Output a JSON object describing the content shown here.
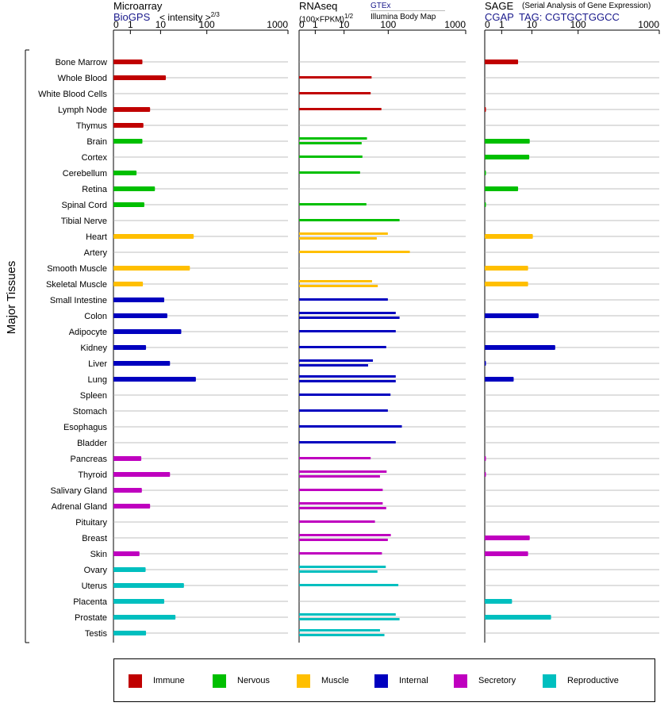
{
  "panels": {
    "microarray": {
      "title": "Microarray",
      "source": "BioGPS",
      "unit_label": "< intensity >",
      "exponent": "2/3",
      "ticks": [
        "0",
        "1",
        "10",
        "100",
        "1000"
      ]
    },
    "rnaseq": {
      "title": "RNAseq",
      "unit_label": "(100×FPKM)",
      "exponent": "1/2",
      "source_gtex": "GTEx",
      "source_ibm": "Illumina Body Map",
      "ticks": [
        "0",
        "1",
        "10",
        "100",
        "1000"
      ]
    },
    "sage": {
      "title": "SAGE",
      "subtitle": "(Serial Analysis of Gene Expression)",
      "source": "CGAP",
      "tag": "TAG: CGTGCTGGCC",
      "ticks": [
        "0",
        "1",
        "10",
        "100",
        "1000"
      ]
    }
  },
  "y_group_label": "Major Tissues",
  "legend": [
    {
      "label": "Immune",
      "color": "#c00000"
    },
    {
      "label": "Nervous",
      "color": "#00bf00"
    },
    {
      "label": "Muscle",
      "color": "#ffbf00"
    },
    {
      "label": "Internal",
      "color": "#0000bf"
    },
    {
      "label": "Secretory",
      "color": "#bf00bf"
    },
    {
      "label": "Reproductive",
      "color": "#00bfbf"
    }
  ],
  "chart_data": {
    "type": "bar",
    "orientation": "horizontal",
    "x_scale": "custom nonlinear (0, 1, 10, 100, 1000)",
    "xlim": [
      0,
      1000
    ],
    "categories": [
      "Bone Marrow",
      "Whole Blood",
      "White Blood Cells",
      "Lymph Node",
      "Thymus",
      "Brain",
      "Cortex",
      "Cerebellum",
      "Retina",
      "Spinal Cord",
      "Tibial Nerve",
      "Heart",
      "Artery",
      "Smooth Muscle",
      "Skeletal Muscle",
      "Small Intestine",
      "Colon",
      "Adipocyte",
      "Kidney",
      "Liver",
      "Lung",
      "Spleen",
      "Stomach",
      "Esophagus",
      "Bladder",
      "Pancreas",
      "Thyroid",
      "Salivary Gland",
      "Adrenal Gland",
      "Pituitary",
      "Breast",
      "Skin",
      "Ovary",
      "Uterus",
      "Placenta",
      "Prostate",
      "Testis"
    ],
    "groups": [
      "Immune",
      "Immune",
      "Immune",
      "Immune",
      "Immune",
      "Nervous",
      "Nervous",
      "Nervous",
      "Nervous",
      "Nervous",
      "Nervous",
      "Muscle",
      "Muscle",
      "Muscle",
      "Muscle",
      "Internal",
      "Internal",
      "Internal",
      "Internal",
      "Internal",
      "Internal",
      "Internal",
      "Internal",
      "Internal",
      "Internal",
      "Secretory",
      "Secretory",
      "Secretory",
      "Secretory",
      "Secretory",
      "Secretory",
      "Secretory",
      "Reproductive",
      "Reproductive",
      "Reproductive",
      "Reproductive",
      "Reproductive"
    ],
    "series": [
      {
        "name": "Microarray",
        "values": [
          2.5,
          13,
          null,
          4.5,
          2.7,
          2.5,
          null,
          1.6,
          6.5,
          2.9,
          null,
          52,
          null,
          43,
          2.6,
          12,
          14,
          28,
          3.3,
          16,
          58,
          null,
          null,
          null,
          null,
          2.3,
          16,
          2.4,
          4.5,
          null,
          null,
          2.0,
          3.2,
          32,
          12,
          21,
          3.3
        ]
      },
      {
        "name": "RNAseq GTEx",
        "values": [
          null,
          42,
          40,
          70,
          null,
          33,
          26,
          23,
          null,
          32,
          140,
          98,
          190,
          null,
          43,
          98,
          125,
          125,
          90,
          45,
          125,
          107,
          98,
          150,
          125,
          40,
          92,
          75,
          75,
          50,
          108,
          72,
          88,
          135,
          null,
          125,
          65
        ]
      },
      {
        "name": "RNAseq Illumina Body Map",
        "values": [
          null,
          null,
          null,
          null,
          null,
          25,
          null,
          null,
          null,
          null,
          null,
          55,
          null,
          null,
          58,
          null,
          140,
          null,
          null,
          35,
          125,
          null,
          null,
          null,
          null,
          null,
          65,
          null,
          90,
          null,
          98,
          null,
          57,
          null,
          null,
          140,
          82
        ]
      },
      {
        "name": "SAGE",
        "values": [
          3.5,
          null,
          null,
          0.06,
          null,
          8.5,
          8.2,
          0.05,
          3.5,
          0.05,
          null,
          10.5,
          null,
          7.5,
          7.5,
          null,
          14,
          null,
          32,
          0.05,
          2.5,
          null,
          null,
          null,
          null,
          0.05,
          0.05,
          null,
          null,
          null,
          8.5,
          7.5,
          null,
          null,
          2.2,
          26,
          null
        ]
      }
    ]
  }
}
